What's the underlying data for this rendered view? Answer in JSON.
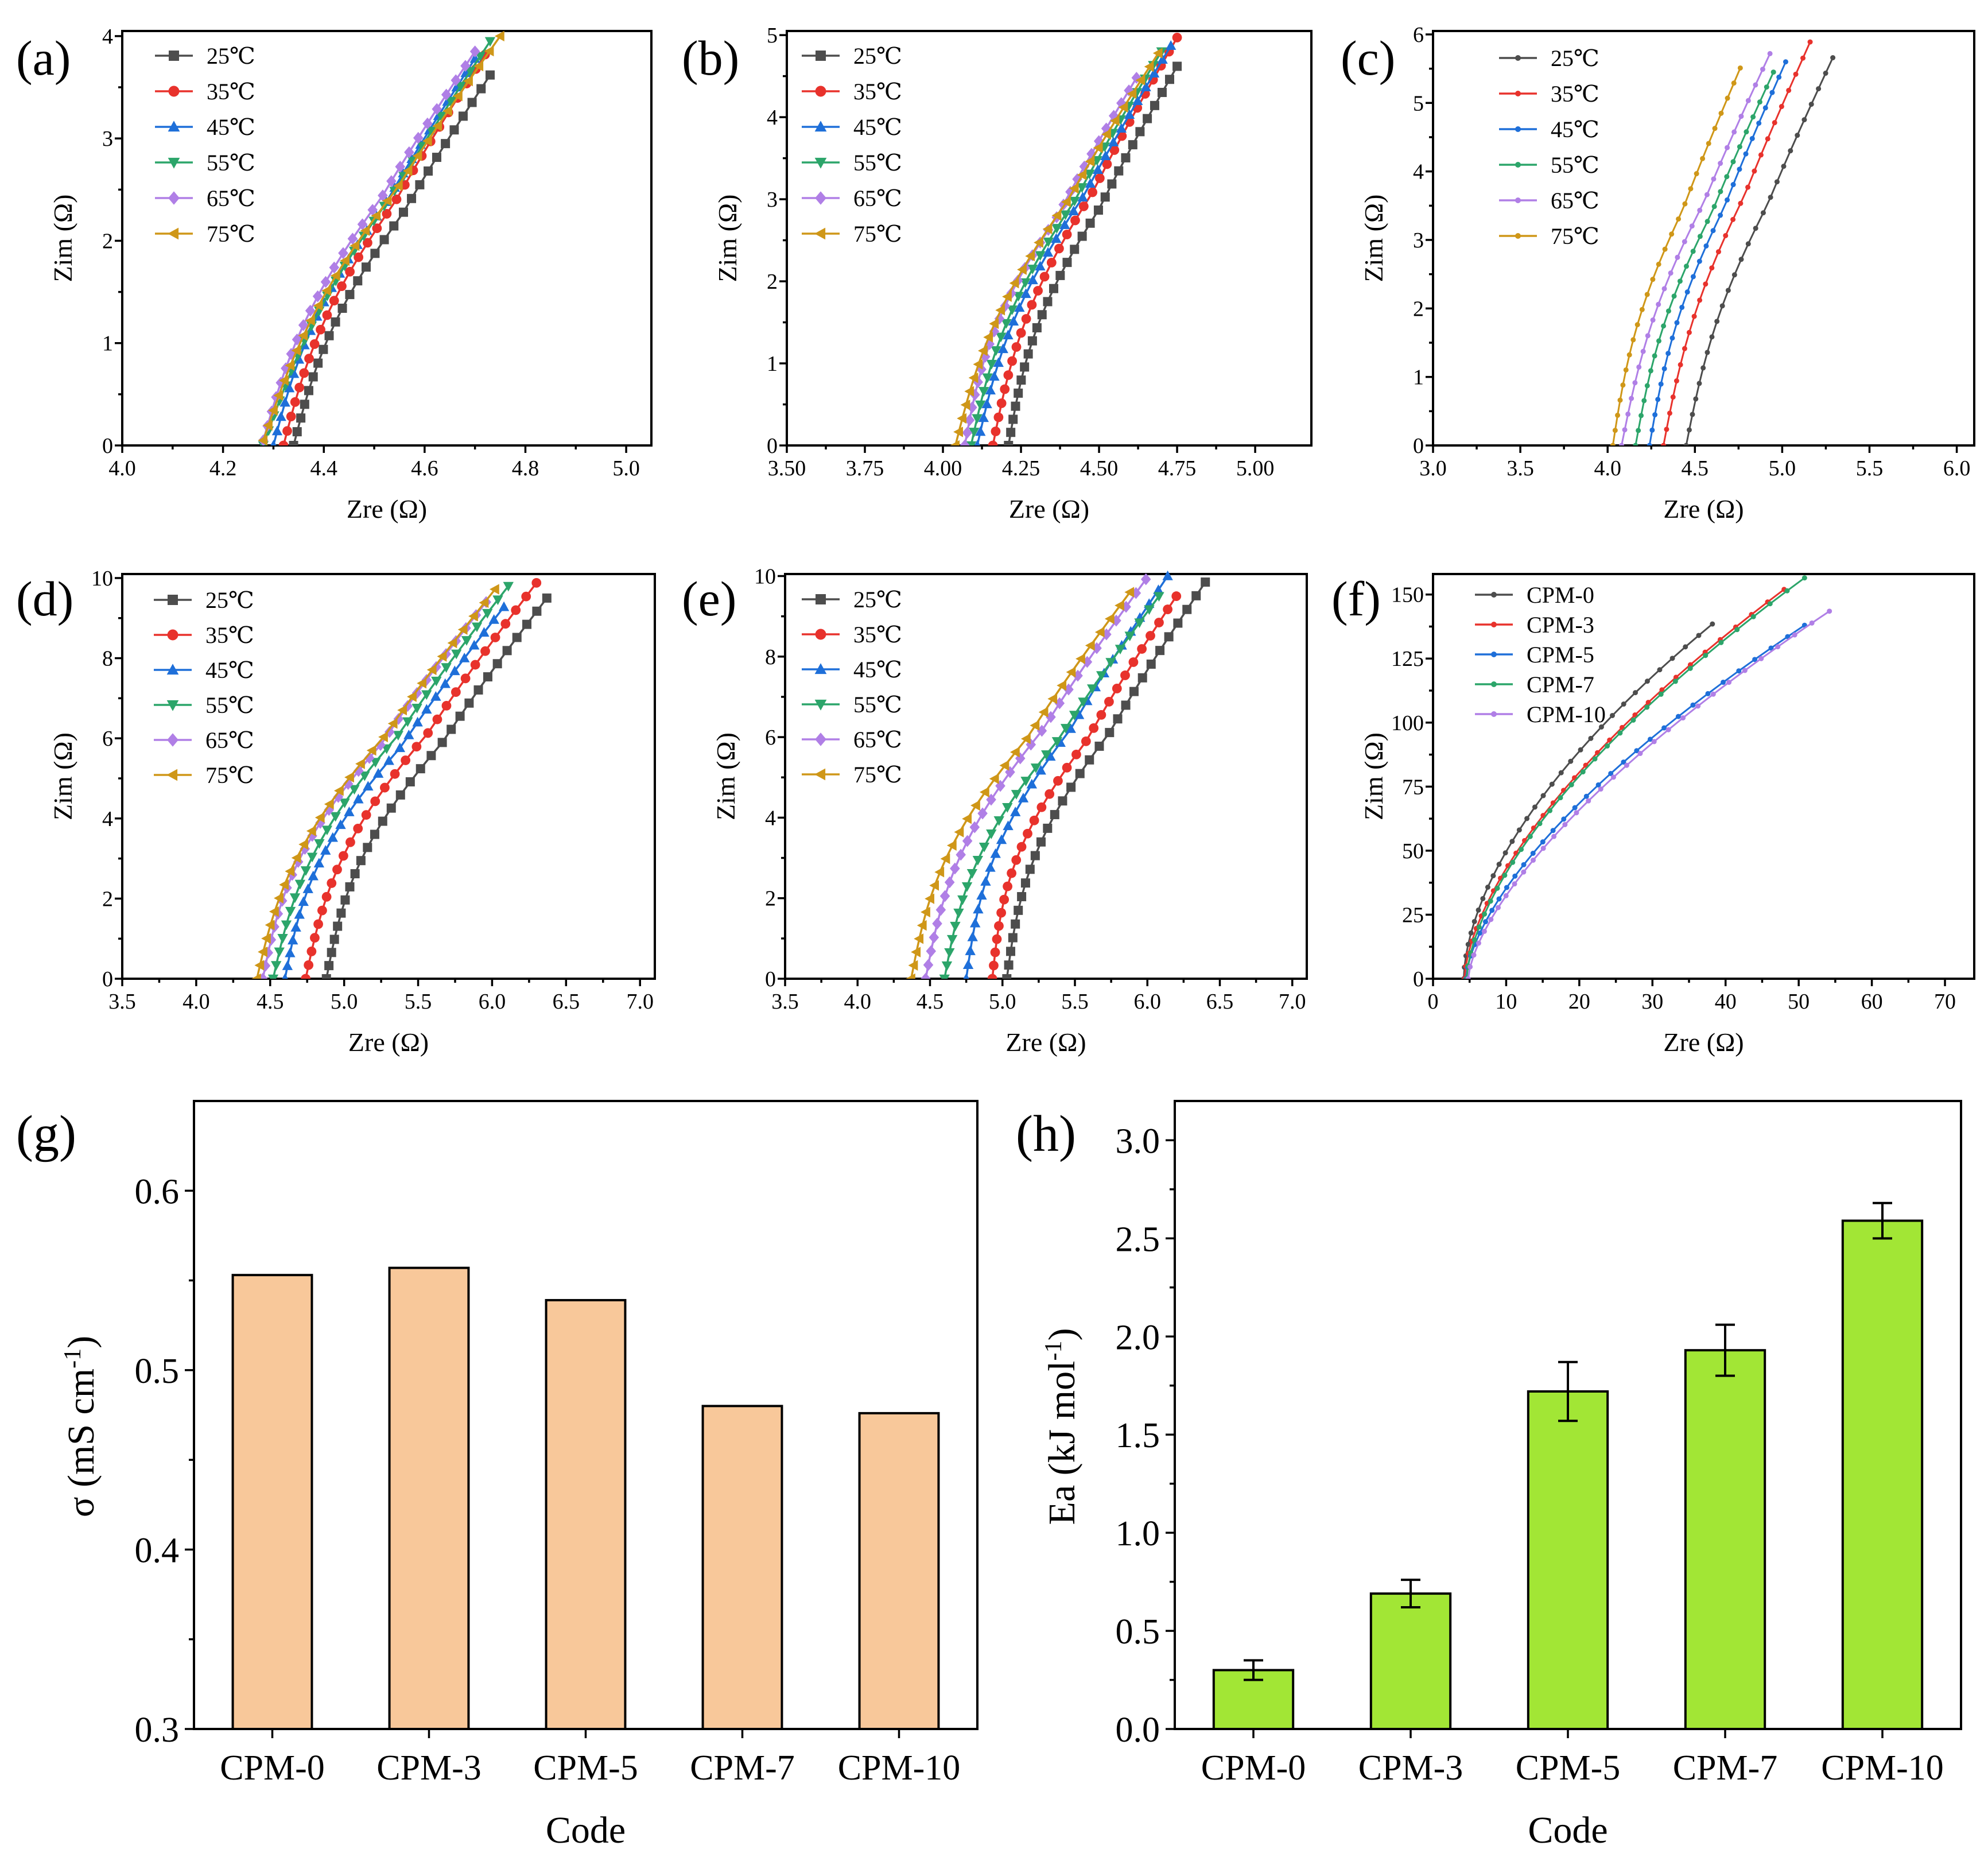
{
  "colors": {
    "T25": "#4d4d4d",
    "T35": "#e8322c",
    "T45": "#1e6fd9",
    "T55": "#2ca56a",
    "T65": "#b07fe6",
    "T75": "#cf9718",
    "bar_sigma": "#f8c89a",
    "bar_ea": "#a2e635"
  },
  "chart_data": [
    {
      "id": "a",
      "panel_label": "(a)",
      "type": "line",
      "xlabel": "Zre (Ω)",
      "ylabel": "Zim (Ω)",
      "xlim": [
        4.0,
        5.05
      ],
      "ylim": [
        0,
        4.05
      ],
      "xticks": [
        4.0,
        4.2,
        4.4,
        4.6,
        4.8,
        5.0
      ],
      "xtick_labels": [
        "4.0",
        "4.2",
        "4.4",
        "4.6",
        "4.8",
        "5.0"
      ],
      "yticks": [
        0,
        1,
        2,
        3,
        4
      ],
      "ytick_labels": [
        "0",
        "1",
        "2",
        "3",
        "4"
      ],
      "marker_style": "big",
      "series": [
        {
          "name": "25℃",
          "color_key": "T25",
          "marker": "square",
          "start": [
            4.34,
            0
          ],
          "end": [
            4.73,
            3.62
          ],
          "bow": 0.06,
          "n": 28
        },
        {
          "name": "35℃",
          "color_key": "T35",
          "marker": "circle",
          "start": [
            4.32,
            0
          ],
          "end": [
            4.72,
            3.82
          ],
          "bow": 0.06,
          "n": 28
        },
        {
          "name": "45℃",
          "color_key": "T45",
          "marker": "triangle-up",
          "start": [
            4.3,
            0
          ],
          "end": [
            4.7,
            3.78
          ],
          "bow": 0.06,
          "n": 28
        },
        {
          "name": "55℃",
          "color_key": "T55",
          "marker": "triangle-down",
          "start": [
            4.28,
            0
          ],
          "end": [
            4.73,
            3.95
          ],
          "bow": 0.05,
          "n": 28
        },
        {
          "name": "65℃",
          "color_key": "T65",
          "marker": "diamond",
          "start": [
            4.28,
            0.05
          ],
          "end": [
            4.7,
            3.85
          ],
          "bow": 0.06,
          "n": 28
        },
        {
          "name": "75℃",
          "color_key": "T75",
          "marker": "triangle-left",
          "start": [
            4.28,
            0.05
          ],
          "end": [
            4.75,
            4.0
          ],
          "bow": 0.06,
          "n": 28
        }
      ]
    },
    {
      "id": "b",
      "panel_label": "(b)",
      "type": "line",
      "xlabel": "Zre (Ω)",
      "ylabel": "Zim (Ω)",
      "xlim": [
        3.5,
        5.18
      ],
      "ylim": [
        0,
        5.05
      ],
      "xticks": [
        3.5,
        3.75,
        4.0,
        4.25,
        4.5,
        4.75,
        5.0
      ],
      "xtick_labels": [
        "3.50",
        "3.75",
        "4.00",
        "4.25",
        "4.50",
        "4.75",
        "5.00"
      ],
      "yticks": [
        0,
        1,
        2,
        3,
        4,
        5
      ],
      "ytick_labels": [
        "0",
        "1",
        "2",
        "3",
        "4",
        "5"
      ],
      "marker_style": "big",
      "series": [
        {
          "name": "25℃",
          "color_key": "T25",
          "marker": "square",
          "start": [
            4.21,
            0
          ],
          "end": [
            4.75,
            4.62
          ],
          "bow": 0.1,
          "n": 30
        },
        {
          "name": "35℃",
          "color_key": "T35",
          "marker": "circle",
          "start": [
            4.16,
            0
          ],
          "end": [
            4.75,
            4.97
          ],
          "bow": 0.1,
          "n": 30
        },
        {
          "name": "45℃",
          "color_key": "T45",
          "marker": "triangle-up",
          "start": [
            4.11,
            0
          ],
          "end": [
            4.73,
            4.87
          ],
          "bow": 0.1,
          "n": 30
        },
        {
          "name": "55℃",
          "color_key": "T55",
          "marker": "triangle-down",
          "start": [
            4.09,
            0
          ],
          "end": [
            4.7,
            4.8
          ],
          "bow": 0.1,
          "n": 30
        },
        {
          "name": "65℃",
          "color_key": "T65",
          "marker": "diamond",
          "start": [
            4.07,
            0
          ],
          "end": [
            4.62,
            4.48
          ],
          "bow": 0.1,
          "n": 30
        },
        {
          "name": "75℃",
          "color_key": "T75",
          "marker": "triangle-left",
          "start": [
            4.04,
            0
          ],
          "end": [
            4.69,
            4.78
          ],
          "bow": 0.1,
          "n": 30
        }
      ]
    },
    {
      "id": "c",
      "panel_label": "(c)",
      "type": "line",
      "xlabel": "Zre (Ω)",
      "ylabel": "Zim (Ω)",
      "xlim": [
        3.0,
        6.1
      ],
      "ylim": [
        0,
        6.05
      ],
      "xticks": [
        3.0,
        3.5,
        4.0,
        4.5,
        5.0,
        5.5,
        6.0
      ],
      "xtick_labels": [
        "3.0",
        "3.5",
        "4.0",
        "4.5",
        "5.0",
        "5.5",
        "6.0"
      ],
      "yticks": [
        0,
        1,
        2,
        3,
        4,
        5,
        6
      ],
      "ytick_labels": [
        "0",
        "1",
        "2",
        "3",
        "4",
        "5",
        "6"
      ],
      "marker_style": "small",
      "series": [
        {
          "name": "25℃",
          "color_key": "T25",
          "marker": "dot",
          "start": [
            4.45,
            0
          ],
          "end": [
            5.29,
            5.66
          ],
          "bow": 0.12,
          "n": 26
        },
        {
          "name": "35℃",
          "color_key": "T35",
          "marker": "dot",
          "start": [
            4.32,
            0
          ],
          "end": [
            5.16,
            5.89
          ],
          "bow": 0.12,
          "n": 26
        },
        {
          "name": "45℃",
          "color_key": "T45",
          "marker": "dot",
          "start": [
            4.24,
            0
          ],
          "end": [
            5.02,
            5.6
          ],
          "bow": 0.12,
          "n": 26
        },
        {
          "name": "55℃",
          "color_key": "T55",
          "marker": "dot",
          "start": [
            4.16,
            0
          ],
          "end": [
            4.95,
            5.45
          ],
          "bow": 0.12,
          "n": 26
        },
        {
          "name": "65℃",
          "color_key": "T65",
          "marker": "dot",
          "start": [
            4.08,
            0
          ],
          "end": [
            4.93,
            5.72
          ],
          "bow": 0.12,
          "n": 26
        },
        {
          "name": "75℃",
          "color_key": "T75",
          "marker": "dot",
          "start": [
            4.03,
            0
          ],
          "end": [
            4.76,
            5.51
          ],
          "bow": 0.12,
          "n": 26
        }
      ]
    },
    {
      "id": "d",
      "panel_label": "(d)",
      "type": "line",
      "xlabel": "Zre (Ω)",
      "ylabel": "Zim (Ω)",
      "xlim": [
        3.5,
        7.1
      ],
      "ylim": [
        0,
        10.1
      ],
      "xticks": [
        3.5,
        4.0,
        4.5,
        5.0,
        5.5,
        6.0,
        6.5,
        7.0
      ],
      "xtick_labels": [
        "3.5",
        "4.0",
        "4.5",
        "5.0",
        "5.5",
        "6.0",
        "6.5",
        "7.0"
      ],
      "yticks": [
        0,
        2,
        4,
        6,
        8,
        10
      ],
      "ytick_labels": [
        "0",
        "2",
        "4",
        "6",
        "8",
        "10"
      ],
      "marker_style": "big",
      "series": [
        {
          "name": "25℃",
          "color_key": "T25",
          "marker": "square",
          "start": [
            4.88,
            0
          ],
          "end": [
            6.37,
            9.5
          ],
          "bow": 0.3,
          "n": 30
        },
        {
          "name": "35℃",
          "color_key": "T35",
          "marker": "circle",
          "start": [
            4.74,
            0
          ],
          "end": [
            6.3,
            9.88
          ],
          "bow": 0.3,
          "n": 30
        },
        {
          "name": "45℃",
          "color_key": "T45",
          "marker": "triangle-up",
          "start": [
            4.6,
            0
          ],
          "end": [
            6.08,
            9.28
          ],
          "bow": 0.3,
          "n": 30
        },
        {
          "name": "55℃",
          "color_key": "T55",
          "marker": "triangle-down",
          "start": [
            4.52,
            0
          ],
          "end": [
            6.11,
            9.8
          ],
          "bow": 0.3,
          "n": 30
        },
        {
          "name": "65℃",
          "color_key": "T65",
          "marker": "diamond",
          "start": [
            4.45,
            0
          ],
          "end": [
            5.96,
            9.4
          ],
          "bow": 0.3,
          "n": 30
        },
        {
          "name": "75℃",
          "color_key": "T75",
          "marker": "triangle-left",
          "start": [
            4.41,
            0
          ],
          "end": [
            6.02,
            9.72
          ],
          "bow": 0.3,
          "n": 30
        }
      ]
    },
    {
      "id": "e",
      "panel_label": "(e)",
      "type": "line",
      "xlabel": "Zre (Ω)",
      "ylabel": "Zim (Ω)",
      "xlim": [
        3.5,
        7.1
      ],
      "ylim": [
        0,
        10.05
      ],
      "xticks": [
        3.5,
        4.0,
        4.5,
        5.0,
        5.5,
        6.0,
        6.5,
        7.0
      ],
      "xtick_labels": [
        "3.5",
        "4.0",
        "4.5",
        "5.0",
        "5.5",
        "6.0",
        "6.5",
        "7.0"
      ],
      "yticks": [
        0,
        2,
        4,
        6,
        8,
        10
      ],
      "ytick_labels": [
        "0",
        "2",
        "4",
        "6",
        "8",
        "10"
      ],
      "marker_style": "big",
      "series": [
        {
          "name": "25℃",
          "color_key": "T25",
          "marker": "square",
          "start": [
            5.03,
            0
          ],
          "end": [
            6.4,
            9.85
          ],
          "bow": 0.3,
          "n": 30
        },
        {
          "name": "35℃",
          "color_key": "T35",
          "marker": "circle",
          "start": [
            4.93,
            0
          ],
          "end": [
            6.2,
            9.5
          ],
          "bow": 0.3,
          "n": 30
        },
        {
          "name": "45℃",
          "color_key": "T45",
          "marker": "triangle-up",
          "start": [
            4.75,
            0
          ],
          "end": [
            6.14,
            10.0
          ],
          "bow": 0.3,
          "n": 30
        },
        {
          "name": "55℃",
          "color_key": "T55",
          "marker": "triangle-down",
          "start": [
            4.6,
            0
          ],
          "end": [
            6.08,
            9.5
          ],
          "bow": 0.3,
          "n": 30
        },
        {
          "name": "65℃",
          "color_key": "T65",
          "marker": "diamond",
          "start": [
            4.47,
            0
          ],
          "end": [
            5.99,
            9.92
          ],
          "bow": 0.3,
          "n": 30
        },
        {
          "name": "75℃",
          "color_key": "T75",
          "marker": "triangle-left",
          "start": [
            4.37,
            0
          ],
          "end": [
            5.88,
            9.6
          ],
          "bow": 0.3,
          "n": 30
        }
      ]
    },
    {
      "id": "f",
      "panel_label": "(f)",
      "type": "line",
      "xlabel": "Zre (Ω)",
      "ylabel": "Zim (Ω)",
      "xlim": [
        0,
        74
      ],
      "ylim": [
        0,
        158
      ],
      "xticks": [
        0,
        10,
        20,
        30,
        40,
        50,
        60,
        70
      ],
      "xtick_labels": [
        "0",
        "10",
        "20",
        "30",
        "40",
        "50",
        "60",
        "70"
      ],
      "yticks": [
        0,
        25,
        50,
        75,
        100,
        125,
        150
      ],
      "ytick_labels": [
        "0",
        "25",
        "50",
        "75",
        "100",
        "125",
        "150"
      ],
      "marker_style": "small",
      "series": [
        {
          "name": "CPM-0",
          "color_key": "T25",
          "marker": "dot",
          "start": [
            4.2,
            0
          ],
          "end": [
            38.2,
            138.5
          ],
          "exp": 0.58,
          "n": 32
        },
        {
          "name": "CPM-3",
          "color_key": "T35",
          "marker": "dot",
          "start": [
            4.3,
            0
          ],
          "end": [
            48.0,
            152.0
          ],
          "exp": 0.62,
          "n": 32
        },
        {
          "name": "CPM-5",
          "color_key": "T45",
          "marker": "dot",
          "start": [
            4.5,
            0
          ],
          "end": [
            50.8,
            138.0
          ],
          "exp": 0.64,
          "n": 32
        },
        {
          "name": "CPM-7",
          "color_key": "T55",
          "marker": "dot",
          "start": [
            4.6,
            0
          ],
          "end": [
            50.8,
            156.5
          ],
          "exp": 0.62,
          "n": 32
        },
        {
          "name": "CPM-10",
          "color_key": "T65",
          "marker": "dot",
          "start": [
            4.8,
            0
          ],
          "end": [
            54.2,
            143.5
          ],
          "exp": 0.66,
          "n": 32
        }
      ]
    },
    {
      "id": "g",
      "panel_label": "(g)",
      "type": "bar",
      "xlabel": "Code",
      "ylabel": "σ (mS cm",
      "ylabel_sup": "-1",
      "ylabel_tail": ")",
      "categories": [
        "CPM-0",
        "CPM-3",
        "CPM-5",
        "CPM-7",
        "CPM-10"
      ],
      "values": [
        0.553,
        0.557,
        0.539,
        0.48,
        0.476
      ],
      "ylim": [
        0.3,
        0.65
      ],
      "yticks": [
        0.3,
        0.4,
        0.5,
        0.6
      ],
      "ytick_labels": [
        "0.3",
        "0.4",
        "0.5",
        "0.6"
      ],
      "color_key": "bar_sigma"
    },
    {
      "id": "h",
      "panel_label": "(h)",
      "type": "bar",
      "xlabel": "Code",
      "ylabel": "Ea (kJ mol",
      "ylabel_sup": "-1",
      "ylabel_tail": ")",
      "categories": [
        "CPM-0",
        "CPM-3",
        "CPM-5",
        "CPM-7",
        "CPM-10"
      ],
      "values": [
        0.3,
        0.69,
        1.72,
        1.93,
        2.59
      ],
      "errors": [
        0.05,
        0.07,
        0.15,
        0.13,
        0.09
      ],
      "ylim": [
        0.0,
        3.2
      ],
      "yticks": [
        0.0,
        0.5,
        1.0,
        1.5,
        2.0,
        2.5,
        3.0
      ],
      "ytick_labels": [
        "0.0",
        "0.5",
        "1.0",
        "1.5",
        "2.0",
        "2.5",
        "3.0"
      ],
      "color_key": "bar_ea"
    }
  ]
}
